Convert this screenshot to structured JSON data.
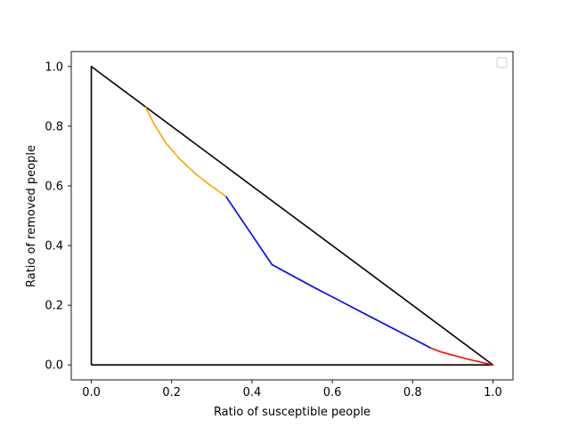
{
  "chart_data": {
    "type": "line",
    "title": "",
    "xlabel": "Ratio of susceptible people",
    "ylabel": "Ratio of removed people",
    "xlim": [
      -0.05,
      1.05
    ],
    "ylim": [
      -0.05,
      1.05
    ],
    "xticks": [
      0.0,
      0.2,
      0.4,
      0.6,
      0.8,
      1.0
    ],
    "yticks": [
      0.0,
      0.2,
      0.4,
      0.6,
      0.8,
      1.0
    ],
    "xtick_labels": [
      "0.0",
      "0.2",
      "0.4",
      "0.6",
      "0.8",
      "1.0"
    ],
    "ytick_labels": [
      "0.0",
      "0.2",
      "0.4",
      "0.6",
      "0.8",
      "1.0"
    ],
    "grid": false,
    "legend": {
      "placement": "upper right",
      "entries": []
    },
    "series": [
      {
        "color": "#000000",
        "x": [
          0.0,
          0.0,
          1.0,
          0.0
        ],
        "y": [
          0.0,
          1.0,
          0.0,
          0.0
        ]
      },
      {
        "color": "#ff0000",
        "x": [
          1.0,
          0.935,
          0.87,
          0.845
        ],
        "y": [
          0.0,
          0.02,
          0.044,
          0.057
        ]
      },
      {
        "color": "#0000ff",
        "x": [
          0.845,
          0.7,
          0.55,
          0.45,
          0.335
        ],
        "y": [
          0.057,
          0.158,
          0.263,
          0.336,
          0.565
        ]
      },
      {
        "color": "#ffa500",
        "x": [
          0.335,
          0.3,
          0.26,
          0.22,
          0.185,
          0.155,
          0.135
        ],
        "y": [
          0.565,
          0.598,
          0.64,
          0.69,
          0.745,
          0.81,
          0.865
        ]
      }
    ]
  }
}
